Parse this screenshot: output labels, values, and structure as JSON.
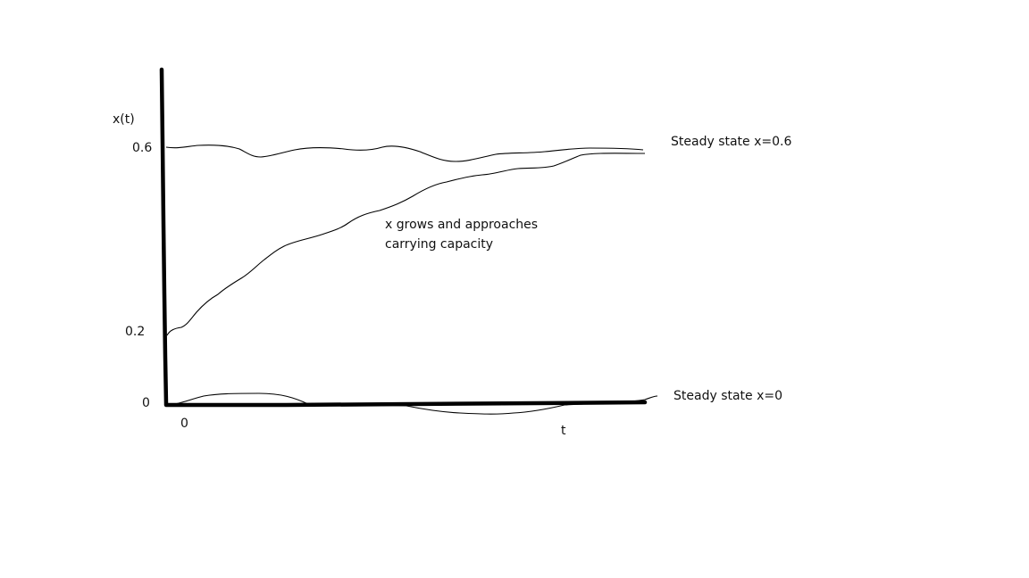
{
  "axes": {
    "y_label": "x(t)",
    "x_label": "t",
    "y_ticks": [
      "0.6",
      "0.2",
      "0"
    ],
    "x_ticks": [
      "0"
    ]
  },
  "annotations": {
    "steady_top": "Steady state x=0.6",
    "steady_bottom": "Steady state x=0",
    "growth_line1": "x grows and approaches",
    "growth_line2": "carrying capacity"
  },
  "style": {
    "ink": "#000000",
    "background": "#ffffff"
  }
}
